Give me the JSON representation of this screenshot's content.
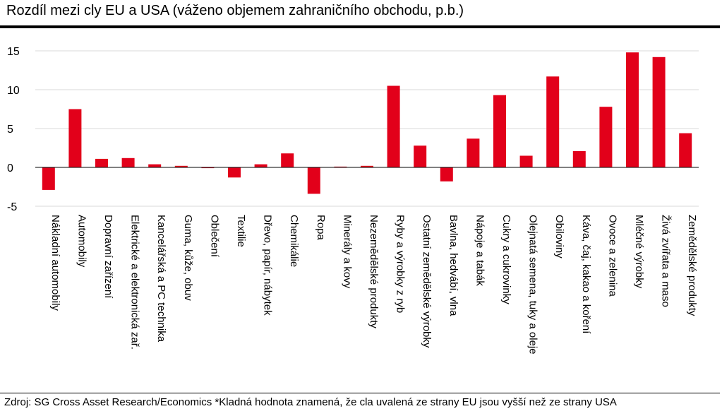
{
  "title": "Rozdíl mezi cly EU a USA (váženo objemem zahraničního obchodu, p.b.)",
  "source": "Zdroj: SG Cross Asset Research/Economics *Kladná hodnota znamená, že cla uvalená ze strany EU jsou vyšší než ze strany USA",
  "colors": {
    "bar": "#e2001a",
    "grid": "#d9d9d9",
    "axis": "#000000"
  },
  "chart_data": {
    "type": "bar",
    "title": "Rozdíl mezi cly EU a USA (váženo objemem zahraničního obchodu, p.b.)",
    "xlabel": "",
    "ylabel": "",
    "ylim": [
      -5,
      15
    ],
    "yticks": [
      -5,
      0,
      5,
      10,
      15
    ],
    "grid": true,
    "categories": [
      "Nákladní automobily",
      "Automobily",
      "Dopravní zařízení",
      "Elektrické a elektronická zař.",
      "Kancelářská a PC technika",
      "Guma, kůže, obuv",
      "Oblečení",
      "Textilie",
      "Dřevo, papír, nábytek",
      "Chemikálie",
      "Ropa",
      "Minerály a kovy",
      "Nezemědělské produkty",
      "Ryby a výrobky z ryb",
      "Ostatní zemědělské výrobky",
      "Bavlna, hedvábí, vlna",
      "Nápoje a tabák",
      "Cukry a cukrovinky",
      "Olejnatá semena, tuky a oleje",
      "Obiloviny",
      "Káva, čaj, kakao a koření",
      "Ovoce a zelenina",
      "Mléčné výrobky",
      "Živá zvířata a maso",
      "Zemědělské produkty"
    ],
    "values": [
      -2.9,
      7.5,
      1.1,
      1.2,
      0.4,
      0.2,
      -0.1,
      -1.3,
      0.4,
      1.8,
      -3.4,
      0.1,
      0.2,
      10.5,
      2.8,
      -1.8,
      3.7,
      9.3,
      1.5,
      11.7,
      2.1,
      7.8,
      14.8,
      14.2,
      4.4
    ]
  }
}
